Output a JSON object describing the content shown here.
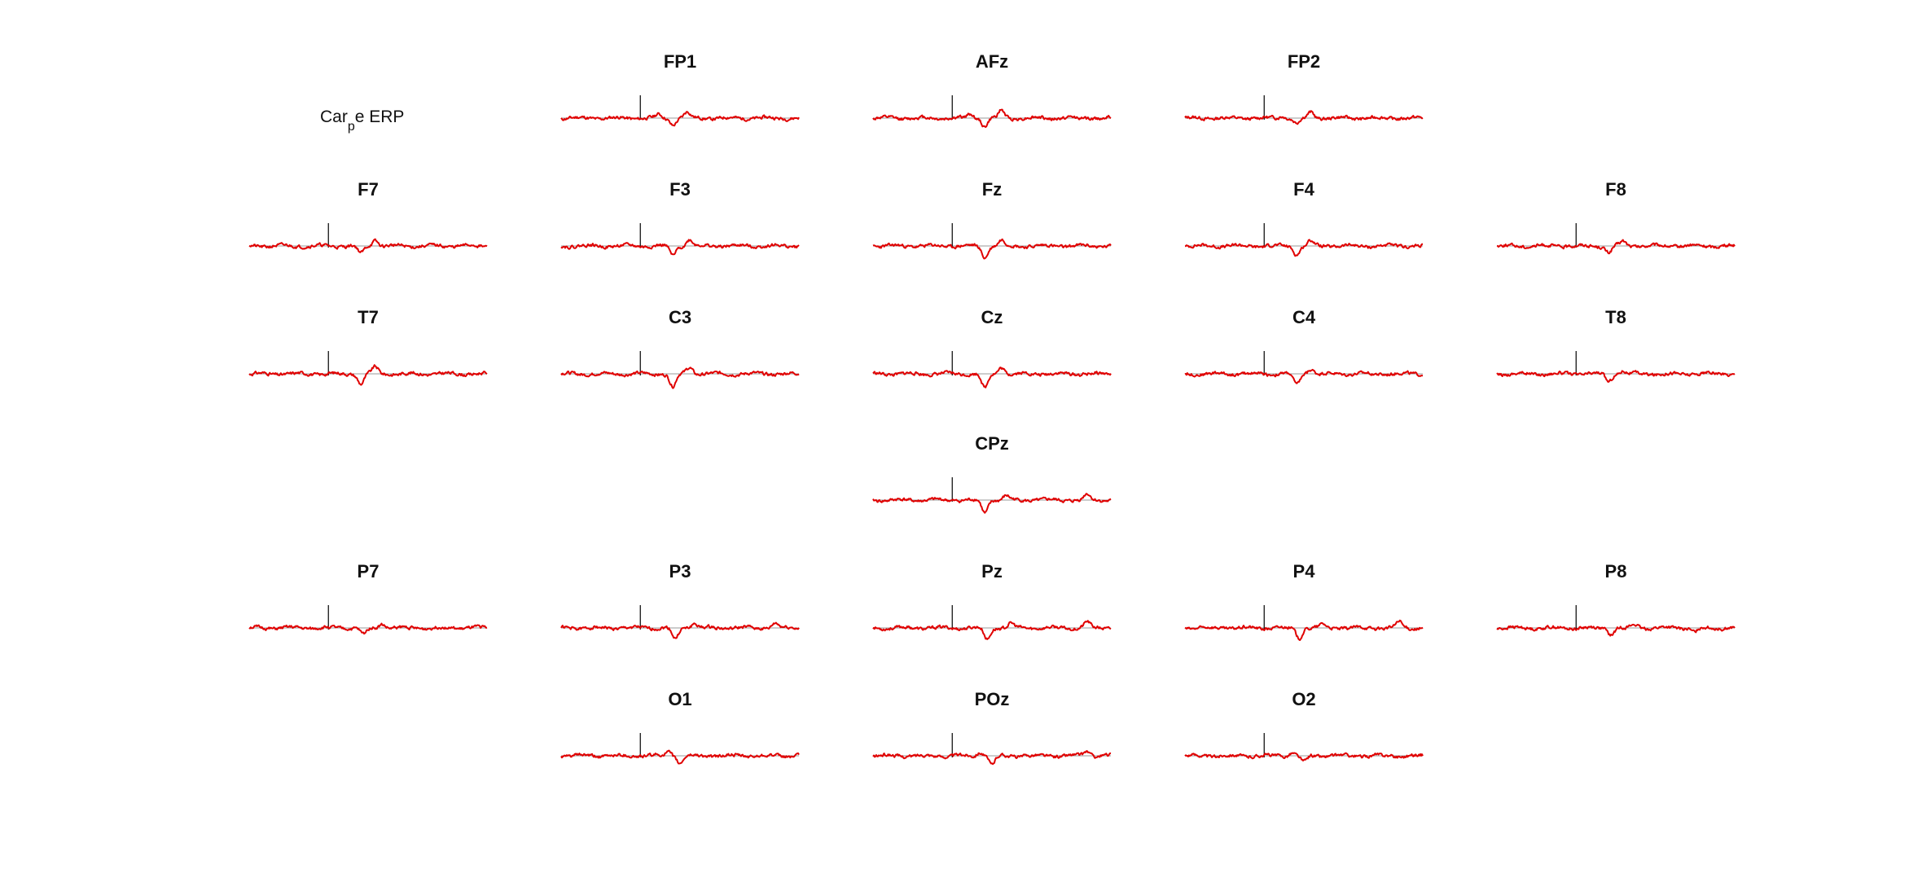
{
  "legend": {
    "main": "Car",
    "subscript": "p",
    "rest": "e ERP"
  },
  "colors": {
    "trace": "#e00000",
    "baseline": "#9a9a9a",
    "marker": "#000000"
  },
  "chart_data": {
    "type": "line",
    "description_free": true,
    "grid": false,
    "channels": [
      {
        "name": "FP1",
        "row": 0,
        "col": 1,
        "seed": 11,
        "dips": [
          {
            "t": 0.47,
            "a": -8
          },
          {
            "t": 0.53,
            "a": 7
          },
          {
            "t": 0.41,
            "a": 4
          }
        ]
      },
      {
        "name": "AFz",
        "row": 0,
        "col": 2,
        "seed": 12,
        "dips": [
          {
            "t": 0.47,
            "a": -10
          },
          {
            "t": 0.54,
            "a": 9
          },
          {
            "t": 0.41,
            "a": 5
          }
        ]
      },
      {
        "name": "FP2",
        "row": 0,
        "col": 3,
        "seed": 13,
        "dips": [
          {
            "t": 0.47,
            "a": -6
          },
          {
            "t": 0.53,
            "a": 7
          },
          {
            "t": 0.41,
            "a": 3
          }
        ]
      },
      {
        "name": "F7",
        "row": 1,
        "col": 0,
        "seed": 21,
        "dips": [
          {
            "t": 0.47,
            "a": -9
          },
          {
            "t": 0.53,
            "a": 7
          }
        ]
      },
      {
        "name": "F3",
        "row": 1,
        "col": 1,
        "seed": 22,
        "dips": [
          {
            "t": 0.47,
            "a": -12
          },
          {
            "t": 0.54,
            "a": 8
          }
        ]
      },
      {
        "name": "Fz",
        "row": 1,
        "col": 2,
        "seed": 23,
        "dips": [
          {
            "t": 0.47,
            "a": -14
          },
          {
            "t": 0.54,
            "a": 7
          }
        ]
      },
      {
        "name": "F4",
        "row": 1,
        "col": 3,
        "seed": 24,
        "dips": [
          {
            "t": 0.47,
            "a": -10
          },
          {
            "t": 0.53,
            "a": 6
          }
        ]
      },
      {
        "name": "F8",
        "row": 1,
        "col": 4,
        "seed": 25,
        "dips": [
          {
            "t": 0.47,
            "a": -8
          },
          {
            "t": 0.53,
            "a": 5
          }
        ]
      },
      {
        "name": "T7",
        "row": 2,
        "col": 0,
        "seed": 31,
        "dips": [
          {
            "t": 0.47,
            "a": -12
          },
          {
            "t": 0.53,
            "a": 8
          }
        ]
      },
      {
        "name": "C3",
        "row": 2,
        "col": 1,
        "seed": 32,
        "dips": [
          {
            "t": 0.47,
            "a": -16
          },
          {
            "t": 0.54,
            "a": 8
          }
        ]
      },
      {
        "name": "Cz",
        "row": 2,
        "col": 2,
        "seed": 33,
        "dips": [
          {
            "t": 0.47,
            "a": -18
          },
          {
            "t": 0.54,
            "a": 8
          }
        ]
      },
      {
        "name": "C4",
        "row": 2,
        "col": 3,
        "seed": 34,
        "dips": [
          {
            "t": 0.47,
            "a": -14
          },
          {
            "t": 0.53,
            "a": 6
          }
        ]
      },
      {
        "name": "T8",
        "row": 2,
        "col": 4,
        "seed": 35,
        "dips": [
          {
            "t": 0.47,
            "a": -9
          },
          {
            "t": 0.53,
            "a": 4
          }
        ]
      },
      {
        "name": "CPz",
        "row": 3,
        "col": 2,
        "seed": 41,
        "dips": [
          {
            "t": 0.47,
            "a": -16
          },
          {
            "t": 0.56,
            "a": 5
          },
          {
            "t": 0.9,
            "a": 7
          }
        ]
      },
      {
        "name": "P7",
        "row": 4,
        "col": 0,
        "seed": 51,
        "dips": [
          {
            "t": 0.48,
            "a": -8
          },
          {
            "t": 0.56,
            "a": 5
          }
        ]
      },
      {
        "name": "P3",
        "row": 4,
        "col": 1,
        "seed": 52,
        "dips": [
          {
            "t": 0.48,
            "a": -14
          },
          {
            "t": 0.56,
            "a": 6
          },
          {
            "t": 0.9,
            "a": 6
          }
        ]
      },
      {
        "name": "Pz",
        "row": 4,
        "col": 2,
        "seed": 53,
        "dips": [
          {
            "t": 0.48,
            "a": -14
          },
          {
            "t": 0.58,
            "a": 5
          },
          {
            "t": 0.9,
            "a": 7
          }
        ]
      },
      {
        "name": "P4",
        "row": 4,
        "col": 3,
        "seed": 54,
        "dips": [
          {
            "t": 0.48,
            "a": -12
          },
          {
            "t": 0.58,
            "a": 4
          },
          {
            "t": 0.9,
            "a": 7
          }
        ]
      },
      {
        "name": "P8",
        "row": 4,
        "col": 4,
        "seed": 55,
        "dips": [
          {
            "t": 0.48,
            "a": -8
          },
          {
            "t": 0.58,
            "a": 4
          },
          {
            "t": 0.83,
            "a": -5
          }
        ]
      },
      {
        "name": "O1",
        "row": 5,
        "col": 1,
        "seed": 61,
        "dips": [
          {
            "t": 0.5,
            "a": -9
          },
          {
            "t": 0.45,
            "a": 5
          }
        ]
      },
      {
        "name": "POz",
        "row": 5,
        "col": 2,
        "seed": 62,
        "dips": [
          {
            "t": 0.5,
            "a": -11
          },
          {
            "t": 0.45,
            "a": 5
          },
          {
            "t": 0.9,
            "a": 6
          }
        ]
      },
      {
        "name": "O2",
        "row": 5,
        "col": 3,
        "seed": 63,
        "dips": [
          {
            "t": 0.5,
            "a": -8
          },
          {
            "t": 0.45,
            "a": 4
          }
        ]
      }
    ],
    "time_marker_fraction": 0.333,
    "noise_amplitude": 3.2
  }
}
